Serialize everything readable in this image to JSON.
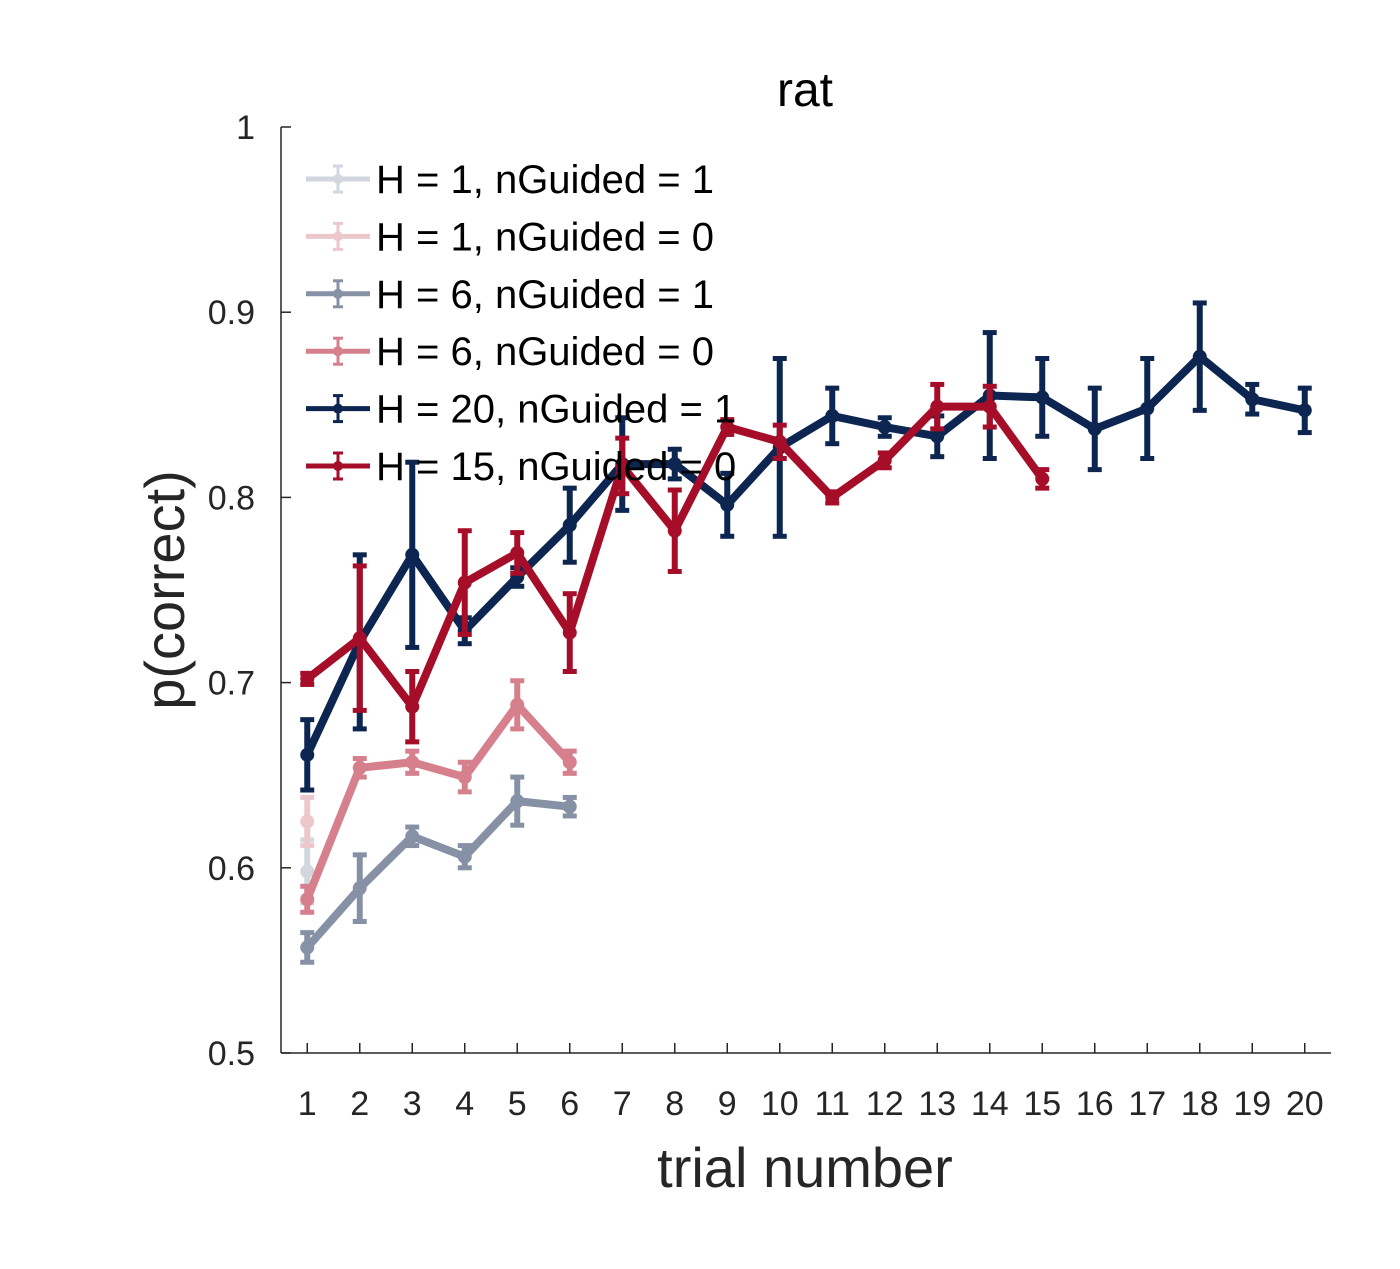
{
  "chart_data": {
    "type": "line",
    "title": "rat",
    "xlabel": "trial number",
    "ylabel": "p(correct)",
    "xlim": [
      0.5,
      20.5
    ],
    "ylim": [
      0.5,
      1.0
    ],
    "xticks": [
      "1",
      "2",
      "3",
      "4",
      "5",
      "6",
      "7",
      "8",
      "9",
      "10",
      "11",
      "12",
      "13",
      "14",
      "15",
      "16",
      "17",
      "18",
      "19",
      "20"
    ],
    "yticks": [
      "0.5",
      "0.6",
      "0.7",
      "0.8",
      "0.9",
      "1"
    ],
    "legend_position": "top-left",
    "grid": false,
    "series": [
      {
        "name": "H = 1, nGuided = 1",
        "color": "#d1d6df",
        "x": [
          1
        ],
        "y": [
          0.598
        ],
        "err": [
          0.017
        ]
      },
      {
        "name": "H = 1, nGuided = 0",
        "color": "#ecc8cd",
        "x": [
          1
        ],
        "y": [
          0.625
        ],
        "err": [
          0.013
        ]
      },
      {
        "name": "H = 6, nGuided = 1",
        "color": "#8791a6",
        "x": [
          1,
          2,
          3,
          4,
          5,
          6
        ],
        "y": [
          0.557,
          0.589,
          0.617,
          0.606,
          0.636,
          0.633
        ],
        "err": [
          0.008,
          0.018,
          0.005,
          0.006,
          0.013,
          0.005
        ]
      },
      {
        "name": "H = 6, nGuided = 0",
        "color": "#d6808d",
        "x": [
          1,
          2,
          3,
          4,
          5,
          6
        ],
        "y": [
          0.583,
          0.654,
          0.657,
          0.649,
          0.688,
          0.657
        ],
        "err": [
          0.007,
          0.005,
          0.006,
          0.008,
          0.013,
          0.006
        ]
      },
      {
        "name": "H = 20, nGuided = 1",
        "color": "#0c2651",
        "x": [
          1,
          2,
          3,
          4,
          5,
          6,
          7,
          8,
          9,
          10,
          11,
          12,
          13,
          14,
          15,
          16,
          17,
          18,
          19,
          20
        ],
        "y": [
          0.661,
          0.722,
          0.769,
          0.728,
          0.757,
          0.785,
          0.818,
          0.818,
          0.796,
          0.827,
          0.844,
          0.838,
          0.833,
          0.855,
          0.854,
          0.837,
          0.848,
          0.876,
          0.853,
          0.847
        ],
        "err": [
          0.019,
          0.047,
          0.05,
          0.007,
          0.005,
          0.02,
          0.025,
          0.008,
          0.017,
          0.048,
          0.015,
          0.005,
          0.011,
          0.034,
          0.021,
          0.022,
          0.027,
          0.029,
          0.008,
          0.012
        ]
      },
      {
        "name": "H = 15, nGuided = 0",
        "color": "#a50d28",
        "x": [
          1,
          2,
          3,
          4,
          5,
          6,
          7,
          8,
          9,
          10,
          11,
          12,
          13,
          14,
          15
        ],
        "y": [
          0.702,
          0.724,
          0.687,
          0.754,
          0.77,
          0.727,
          0.817,
          0.782,
          0.838,
          0.83,
          0.8,
          0.82,
          0.849,
          0.849,
          0.81
        ],
        "err": [
          0.003,
          0.039,
          0.019,
          0.028,
          0.011,
          0.021,
          0.015,
          0.022,
          0.004,
          0.009,
          0.003,
          0.004,
          0.012,
          0.011,
          0.005
        ]
      }
    ]
  }
}
